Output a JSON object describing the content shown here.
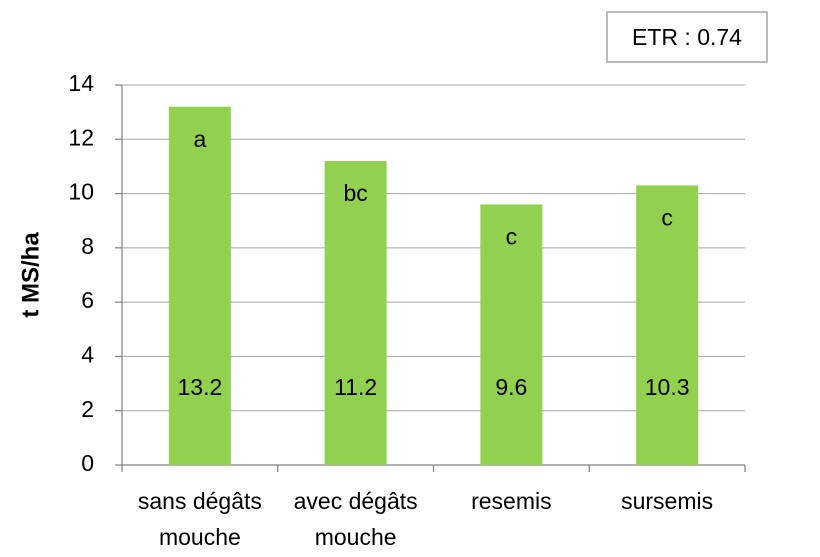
{
  "chart_data": {
    "type": "bar",
    "y_label": "t MS/ha",
    "annotation": "ETR : 0.74",
    "categories": [
      "sans dégâts\nmouche",
      "avec dégâts\nmouche",
      "resemis",
      "sursemis"
    ],
    "values": [
      13.2,
      11.2,
      9.6,
      10.3
    ],
    "group_letters": [
      "a",
      "bc",
      "c",
      "c"
    ],
    "color": "#92d050",
    "ylim": [
      0,
      14
    ],
    "yticks": [
      0,
      2,
      4,
      6,
      8,
      10,
      12,
      14
    ],
    "grid": true
  }
}
